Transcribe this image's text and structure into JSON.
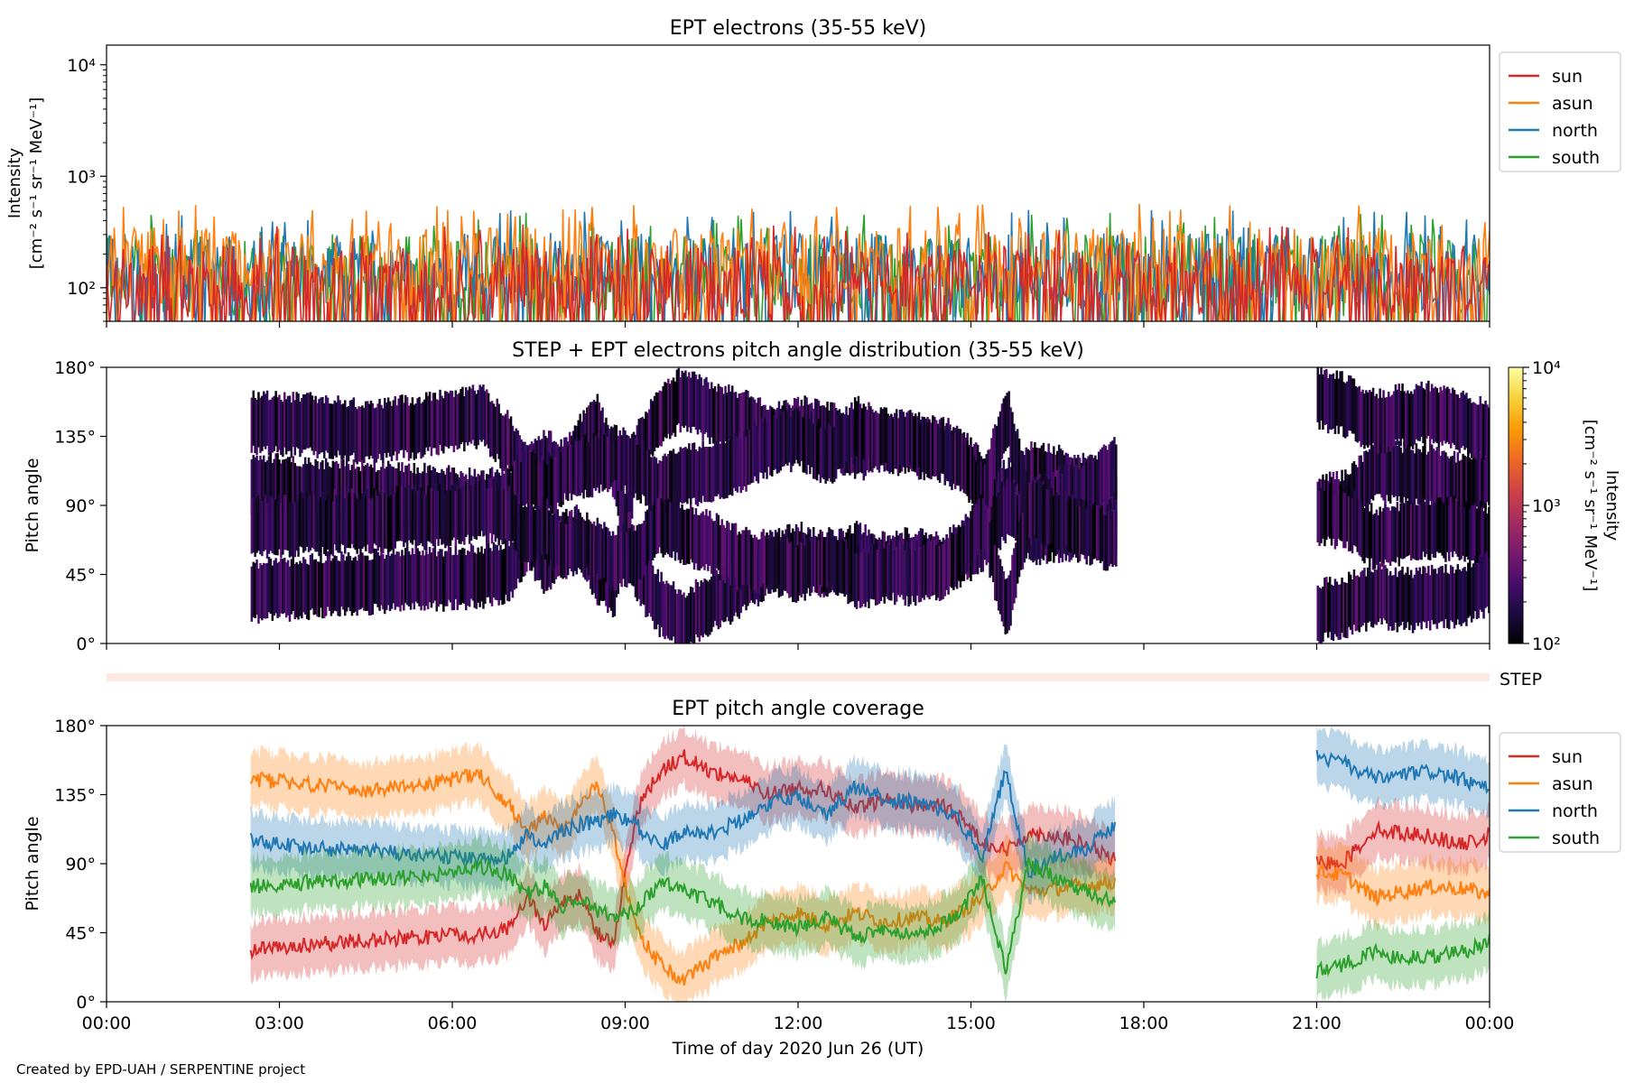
{
  "figure": {
    "xlabel": "Time of day 2020 Jun 26 (UT)",
    "x_tick_labels": [
      "00:00",
      "03:00",
      "06:00",
      "09:00",
      "12:00",
      "15:00",
      "18:00",
      "21:00",
      "00:00"
    ],
    "credit": "Created by EPD-UAH / SERPENTINE project"
  },
  "chart_data": [
    {
      "type": "line",
      "title": "EPT electrons (35-55 keV)",
      "ylabel_lines": [
        "Intensity",
        "[cm⁻² s⁻¹ sr⁻¹ MeV⁻¹]"
      ],
      "yscale": "log",
      "xlim_hours": [
        0,
        24
      ],
      "ylim": [
        50,
        15000
      ],
      "y_tick_labels": [
        "10²",
        "10³",
        "10⁴"
      ],
      "y_tick_values": [
        100,
        1000,
        10000
      ],
      "legend_position": "outside-right",
      "series": [
        {
          "name": "sun",
          "color": "#d62728",
          "baseline": 110,
          "spread": 1.7,
          "max": 520
        },
        {
          "name": "asun",
          "color": "#ff7f0e",
          "baseline": 170,
          "spread": 1.6,
          "max": 680
        },
        {
          "name": "north",
          "color": "#1f77b4",
          "baseline": 150,
          "spread": 1.6,
          "max": 600
        },
        {
          "name": "south",
          "color": "#2ca02c",
          "baseline": 140,
          "spread": 1.7,
          "max": 650
        }
      ],
      "data_coverage_hours": [
        [
          0,
          24
        ]
      ]
    },
    {
      "type": "heatmap",
      "title": "STEP + EPT electrons pitch angle distribution (35-55 keV)",
      "ylabel": "Pitch angle",
      "xlim_hours": [
        0,
        24
      ],
      "ylim": [
        0,
        180
      ],
      "y_tick_labels": [
        "0°",
        "45°",
        "90°",
        "135°",
        "180°"
      ],
      "y_tick_values": [
        0,
        45,
        90,
        135,
        180
      ],
      "colorbar": {
        "label_lines": [
          "Intensity",
          "[cm⁻² s⁻¹ sr⁻¹ MeV⁻¹]"
        ],
        "scale": "log",
        "range": [
          100,
          10000
        ],
        "tick_labels": [
          "10²",
          "10³",
          "10⁴"
        ],
        "tick_values": [
          100,
          1000,
          10000
        ],
        "colormap": "inferno",
        "stops": [
          "#000004",
          "#1b0c41",
          "#4a0c6b",
          "#781c6d",
          "#a52c60",
          "#cf4446",
          "#ed6925",
          "#fb9b06",
          "#f7d13d",
          "#fcffa4"
        ]
      },
      "data_coverage_hours": [
        [
          2.5,
          17.5
        ],
        [
          21.0,
          24.0
        ]
      ]
    },
    {
      "type": "band",
      "label": "STEP",
      "color": "#fde9e1"
    },
    {
      "type": "line",
      "title": "EPT pitch angle coverage",
      "ylabel": "Pitch angle",
      "xlim_hours": [
        0,
        24
      ],
      "ylim": [
        0,
        180
      ],
      "y_tick_labels": [
        "0°",
        "45°",
        "90°",
        "135°",
        "180°"
      ],
      "y_tick_values": [
        0,
        45,
        90,
        135,
        180
      ],
      "legend_position": "outside-right",
      "band_halfwidth_deg": 18,
      "series": [
        {
          "name": "sun",
          "color": "#d62728",
          "x": [
            2.5,
            3.5,
            4.5,
            5.5,
            6.5,
            7.0,
            7.3,
            7.6,
            7.9,
            8.2,
            8.5,
            8.8,
            9.2,
            9.6,
            10.0,
            10.5,
            11.0,
            11.5,
            12.0,
            12.5,
            13.0,
            13.5,
            14.0,
            14.5,
            14.8,
            15.2,
            15.6,
            16.0,
            16.5,
            17.0,
            17.5,
            21.0,
            21.5,
            22.0,
            22.5,
            23.0,
            23.5,
            24.0
          ],
          "y": [
            34,
            37,
            40,
            42,
            44,
            48,
            70,
            50,
            65,
            70,
            45,
            38,
            125,
            150,
            160,
            150,
            145,
            135,
            140,
            138,
            125,
            132,
            128,
            128,
            120,
            105,
            98,
            110,
            108,
            102,
            92,
            90,
            92,
            112,
            110,
            108,
            102,
            108
          ]
        },
        {
          "name": "asun",
          "color": "#ff7f0e",
          "x": [
            2.5,
            3.5,
            4.5,
            5.5,
            6.5,
            7.0,
            7.3,
            7.6,
            7.9,
            8.2,
            8.5,
            8.8,
            9.2,
            9.6,
            10.0,
            10.5,
            11.0,
            11.5,
            12.0,
            12.5,
            13.0,
            13.5,
            14.0,
            14.5,
            14.8,
            15.2,
            15.6,
            16.0,
            16.5,
            17.0,
            17.5,
            21.0,
            21.5,
            22.0,
            22.5,
            23.0,
            23.5,
            24.0
          ],
          "y": [
            145,
            142,
            138,
            142,
            148,
            128,
            110,
            120,
            112,
            128,
            142,
            110,
            45,
            25,
            14,
            28,
            38,
            52,
            58,
            50,
            58,
            52,
            55,
            52,
            58,
            68,
            88,
            72,
            74,
            76,
            78,
            85,
            82,
            68,
            72,
            75,
            74,
            70
          ]
        },
        {
          "name": "north",
          "color": "#1f77b4",
          "x": [
            2.5,
            3.5,
            4.5,
            5.5,
            6.5,
            7.0,
            7.3,
            7.6,
            7.9,
            8.2,
            8.5,
            8.8,
            9.2,
            9.6,
            10.0,
            10.5,
            11.0,
            11.5,
            12.0,
            12.5,
            13.0,
            13.5,
            14.0,
            14.5,
            14.8,
            15.2,
            15.6,
            16.0,
            16.5,
            17.0,
            17.5,
            21.0,
            21.5,
            22.0,
            22.5,
            23.0,
            23.5,
            24.0
          ],
          "y": [
            105,
            100,
            98,
            96,
            92,
            95,
            110,
            100,
            112,
            115,
            118,
            122,
            115,
            100,
            112,
            110,
            118,
            130,
            135,
            122,
            140,
            132,
            130,
            125,
            118,
            96,
            150,
            85,
            95,
            100,
            115,
            160,
            155,
            145,
            148,
            150,
            145,
            138
          ]
        },
        {
          "name": "south",
          "color": "#2ca02c",
          "x": [
            2.5,
            3.5,
            4.5,
            5.5,
            6.5,
            7.0,
            7.3,
            7.6,
            7.9,
            8.2,
            8.5,
            8.8,
            9.2,
            9.6,
            10.0,
            10.5,
            11.0,
            11.5,
            12.0,
            12.5,
            13.0,
            13.5,
            14.0,
            14.5,
            14.8,
            15.2,
            15.6,
            16.0,
            16.5,
            17.0,
            17.5,
            21.0,
            21.5,
            22.0,
            22.5,
            23.0,
            23.5,
            24.0
          ],
          "y": [
            75,
            78,
            80,
            82,
            88,
            82,
            70,
            75,
            62,
            68,
            60,
            55,
            60,
            78,
            72,
            65,
            55,
            52,
            48,
            55,
            42,
            48,
            45,
            50,
            58,
            80,
            20,
            90,
            80,
            72,
            65,
            20,
            25,
            32,
            28,
            30,
            32,
            40
          ]
        }
      ],
      "data_coverage_hours": [
        [
          2.5,
          17.5
        ],
        [
          21.0,
          24.0
        ]
      ]
    }
  ]
}
